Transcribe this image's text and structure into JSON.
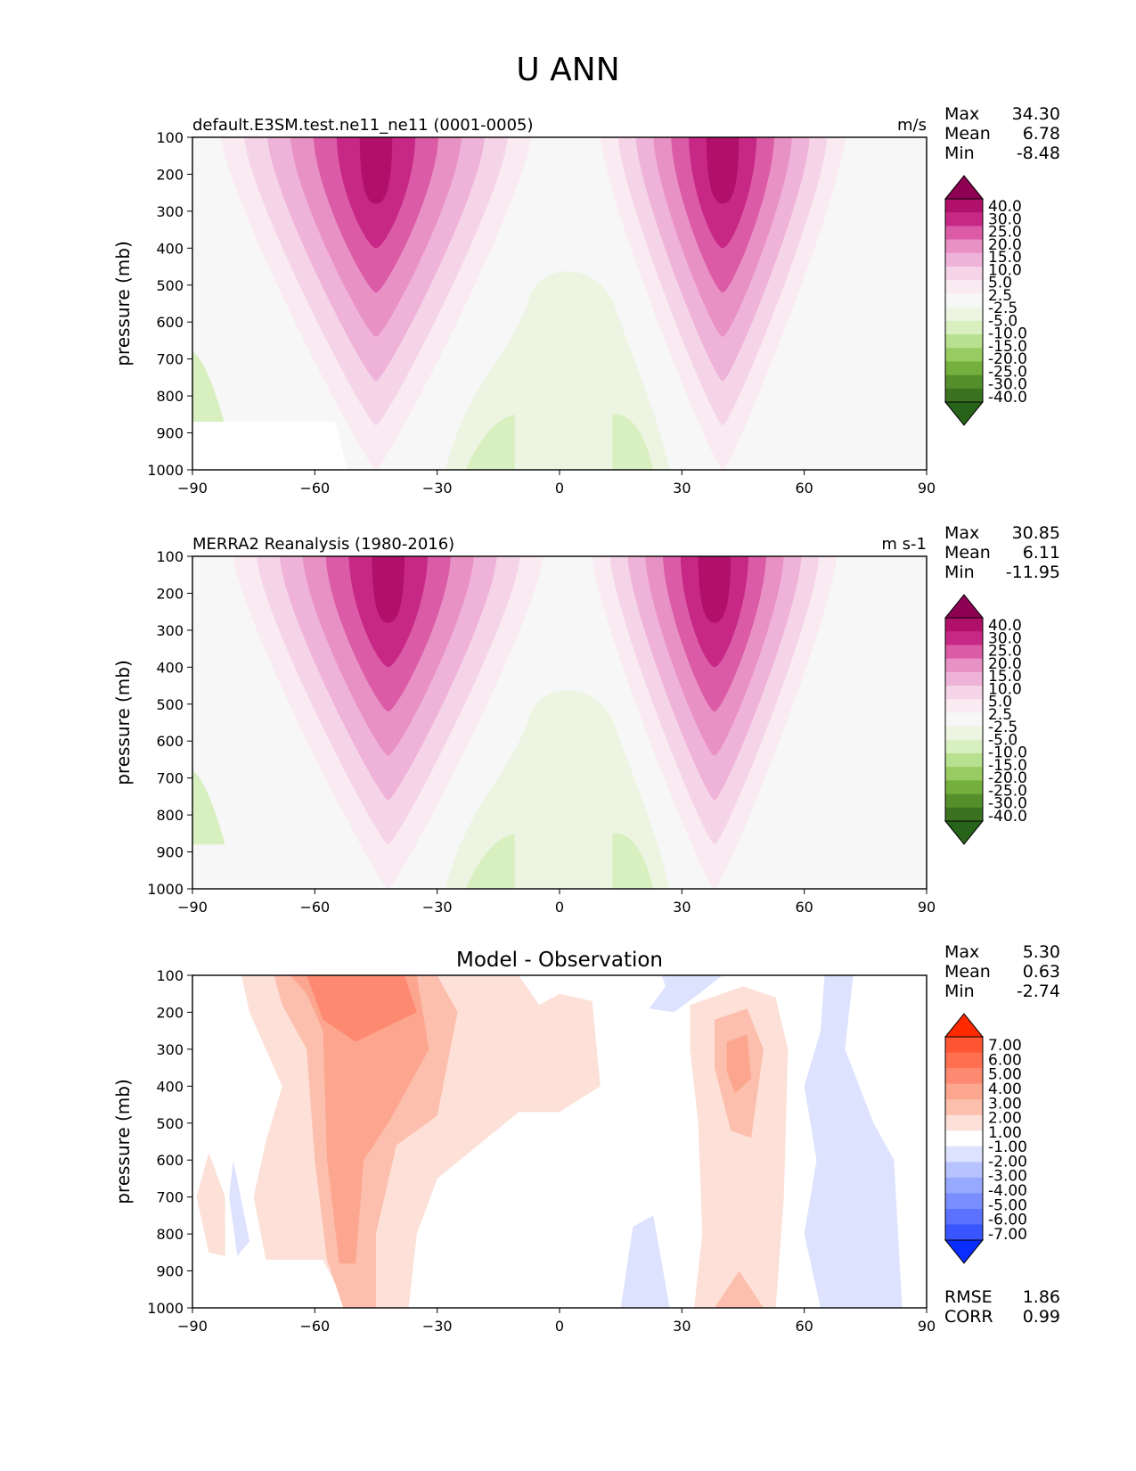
{
  "figure": {
    "title": "U ANN"
  },
  "chart_data": [
    {
      "type": "contour",
      "title": "default.E3SM.test.ne11_ne11 (0001-0005)",
      "units": "m/s",
      "xlabel": "",
      "ylabel": "pressure (mb)",
      "xlim": [
        -90,
        90
      ],
      "ylim": [
        1000,
        100
      ],
      "xticks": [
        "−90",
        "−60",
        "−30",
        "0",
        "30",
        "60",
        "90"
      ],
      "yticks": [
        "100",
        "200",
        "300",
        "400",
        "500",
        "600",
        "700",
        "800",
        "900",
        "1000"
      ],
      "stats": {
        "max_label": "Max",
        "max": "34.30",
        "mean_label": "Mean",
        "mean": "6.78",
        "min_label": "Min",
        "min": "-8.48"
      },
      "colorbar": {
        "labels": [
          "40.0",
          "30.0",
          "25.0",
          "20.0",
          "15.0",
          "10.0",
          "5.0",
          "2.5",
          "-2.5",
          "-5.0",
          "-10.0",
          "-15.0",
          "-20.0",
          "-25.0",
          "-30.0",
          "-40.0"
        ],
        "colors": [
          "#8e0152",
          "#b0106a",
          "#c72885",
          "#db5ba6",
          "#e891c4",
          "#efb2d8",
          "#f6d4e8",
          "#faeaf2",
          "#f7f7f7",
          "#edf5e2",
          "#d8efc0",
          "#b7e08f",
          "#98cc63",
          "#75b03f",
          "#558f2c",
          "#3a721f",
          "#276419"
        ]
      },
      "jets": [
        {
          "lat": -45,
          "p": 200,
          "value": 34.3
        },
        {
          "lat": 40,
          "p": 200,
          "value": 31.0
        }
      ]
    },
    {
      "type": "contour",
      "title": "MERRA2 Reanalysis (1980-2016)",
      "units": "m s-1",
      "xlabel": "",
      "ylabel": "pressure (mb)",
      "xlim": [
        -90,
        90
      ],
      "ylim": [
        1000,
        100
      ],
      "xticks": [
        "−90",
        "−60",
        "−30",
        "0",
        "30",
        "60",
        "90"
      ],
      "yticks": [
        "100",
        "200",
        "300",
        "400",
        "500",
        "600",
        "700",
        "800",
        "900",
        "1000"
      ],
      "stats": {
        "max_label": "Max",
        "max": "30.85",
        "mean_label": "Mean",
        "mean": "6.11",
        "min_label": "Min",
        "min": "-11.95"
      },
      "colorbar": {
        "labels": [
          "40.0",
          "30.0",
          "25.0",
          "20.0",
          "15.0",
          "10.0",
          "5.0",
          "2.5",
          "-2.5",
          "-5.0",
          "-10.0",
          "-15.0",
          "-20.0",
          "-25.0",
          "-30.0",
          "-40.0"
        ],
        "colors": [
          "#8e0152",
          "#b0106a",
          "#c72885",
          "#db5ba6",
          "#e891c4",
          "#efb2d8",
          "#f6d4e8",
          "#faeaf2",
          "#f7f7f7",
          "#edf5e2",
          "#d8efc0",
          "#b7e08f",
          "#98cc63",
          "#75b03f",
          "#558f2c",
          "#3a721f",
          "#276419"
        ]
      },
      "jets": [
        {
          "lat": -42,
          "p": 200,
          "value": 30.85
        },
        {
          "lat": 38,
          "p": 200,
          "value": 30.0
        }
      ]
    },
    {
      "type": "contour",
      "title": "Model - Observation",
      "units": "",
      "xlabel": "",
      "ylabel": "pressure (mb)",
      "xlim": [
        -90,
        90
      ],
      "ylim": [
        1000,
        100
      ],
      "xticks": [
        "−90",
        "−60",
        "−30",
        "0",
        "30",
        "60",
        "90"
      ],
      "yticks": [
        "100",
        "200",
        "300",
        "400",
        "500",
        "600",
        "700",
        "800",
        "900",
        "1000"
      ],
      "stats": {
        "max_label": "Max",
        "max": "5.30",
        "mean_label": "Mean",
        "mean": "0.63",
        "min_label": "Min",
        "min": "-2.74"
      },
      "colorbar": {
        "labels": [
          "7.00",
          "6.00",
          "5.00",
          "4.00",
          "3.00",
          "2.00",
          "1.00",
          "-1.00",
          "-2.00",
          "-3.00",
          "-4.00",
          "-5.00",
          "-6.00",
          "-7.00"
        ],
        "colors": [
          "#ff2a00",
          "#ff5533",
          "#ff6f50",
          "#fd8a70",
          "#fca690",
          "#fcbfae",
          "#fde0d7",
          "#ffffff",
          "#dde3ff",
          "#b6c3ff",
          "#97a8ff",
          "#7a8eff",
          "#5a72ff",
          "#3855ff",
          "#0a2eff"
        ]
      },
      "metrics": {
        "rmse_label": "RMSE",
        "rmse": "1.86",
        "corr_label": "CORR",
        "corr": "0.99"
      }
    }
  ]
}
